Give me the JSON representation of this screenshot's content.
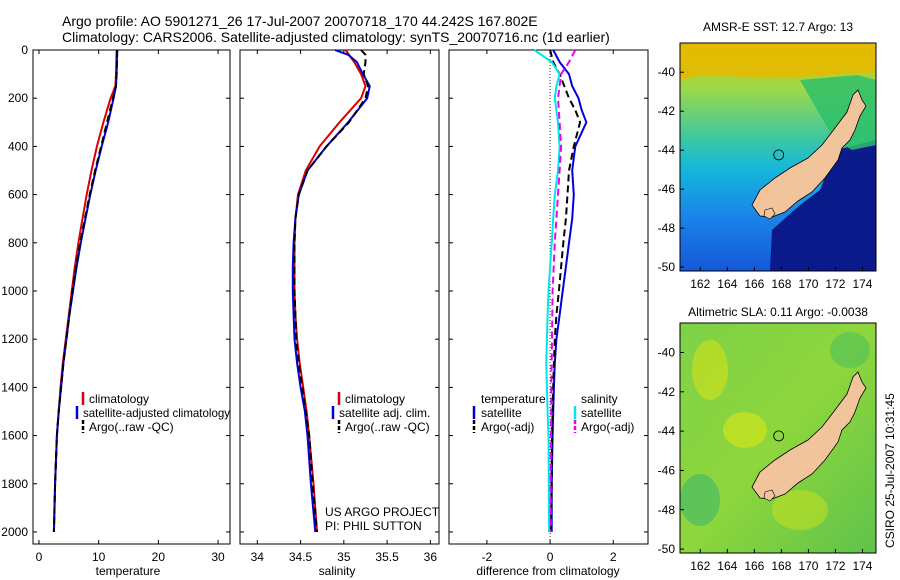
{
  "header": {
    "title_line1": "Argo profile: AO 5901271_26 17-Jul-2007 20070718_170 44.242S 167.802E",
    "title_line2": "Climatology: CARS2006. Satellite-adjusted climatology: synTS_20070716.nc (1d earlier)"
  },
  "colors": {
    "climatology": "#dd0000",
    "satellite": "#0000dd",
    "argo": "#000000",
    "salinity_satellite": "#00e5ee",
    "salinity_argo": "#ee00ee",
    "land": "#f2c49b",
    "sst_ocean": "#0b1a8a"
  },
  "footer": {
    "project": "US ARGO PROJECT",
    "pi": "PI: PHIL SUTTON",
    "stamp": "CSIRO 25-Jul-2007 10:31:45"
  },
  "chart_data": [
    {
      "type": "line",
      "xlabel": "temperature",
      "xlim": [
        -1,
        32
      ],
      "ylim": [
        2050,
        0
      ],
      "xticks": [
        "0",
        "10",
        "20",
        "30"
      ],
      "yticks": [
        "0",
        "200",
        "400",
        "600",
        "800",
        "1000",
        "1200",
        "1400",
        "1600",
        "1800",
        "2000"
      ],
      "legend": [
        "climatology",
        "satellite-adjusted climatology",
        "Argo(..raw -QC)"
      ],
      "legend_position": "lower-center",
      "series": [
        {
          "name": "climatology",
          "color": "#dd0000",
          "depth": [
            0,
            100,
            150,
            200,
            300,
            400,
            500,
            600,
            700,
            800,
            900,
            1000,
            1100,
            1200,
            1300,
            1400,
            1500,
            1600,
            1800,
            2000
          ],
          "values": [
            13.0,
            12.9,
            12.8,
            12.0,
            10.8,
            9.7,
            8.8,
            8.0,
            7.3,
            6.6,
            6.0,
            5.5,
            5.0,
            4.5,
            4.0,
            3.6,
            3.3,
            3.0,
            2.7,
            2.5
          ]
        },
        {
          "name": "satellite-adjusted climatology",
          "color": "#0000dd",
          "depth": [
            0,
            100,
            150,
            200,
            300,
            400,
            500,
            600,
            700,
            800,
            900,
            1000,
            1100,
            1200,
            1300,
            1400,
            1500,
            1600,
            1800,
            2000
          ],
          "values": [
            13.1,
            13.0,
            12.9,
            12.5,
            11.6,
            10.5,
            9.5,
            8.6,
            7.8,
            7.0,
            6.3,
            5.7,
            5.1,
            4.6,
            4.1,
            3.7,
            3.3,
            3.0,
            2.7,
            2.5
          ]
        },
        {
          "name": "Argo(..raw -QC)",
          "color": "#000000",
          "depth": [
            0,
            100,
            150,
            200,
            300,
            400,
            500,
            600,
            700,
            800,
            900,
            1000,
            1100,
            1200,
            1300,
            1400,
            1500,
            1600,
            1800,
            2000
          ],
          "values": [
            13.1,
            13.0,
            12.9,
            12.4,
            11.4,
            10.4,
            9.4,
            8.5,
            7.7,
            6.9,
            6.2,
            5.6,
            5.1,
            4.6,
            4.1,
            3.7,
            3.3,
            3.0,
            2.7,
            2.5
          ]
        }
      ]
    },
    {
      "type": "line",
      "xlabel": "salinity",
      "xlim": [
        33.8,
        36.1
      ],
      "ylim": [
        2050,
        0
      ],
      "xticks": [
        "34",
        "34.5",
        "35",
        "35.5",
        "36"
      ],
      "legend": [
        "climatology",
        "satellite adj. clim.",
        "Argo(..raw -QC)"
      ],
      "legend_position": "lower-center",
      "series": [
        {
          "name": "climatology",
          "color": "#dd0000",
          "depth": [
            0,
            50,
            100,
            150,
            200,
            300,
            400,
            500,
            600,
            700,
            800,
            900,
            1000,
            1100,
            1200,
            1300,
            1400,
            1500,
            1600,
            1800,
            2000
          ],
          "values": [
            35.02,
            35.12,
            35.2,
            35.25,
            35.2,
            34.95,
            34.72,
            34.56,
            34.47,
            34.44,
            34.43,
            34.43,
            34.43,
            34.44,
            34.46,
            34.49,
            34.53,
            34.57,
            34.6,
            34.65,
            34.69
          ]
        },
        {
          "name": "satellite adj. clim.",
          "color": "#0000dd",
          "depth": [
            0,
            20,
            50,
            100,
            150,
            200,
            300,
            400,
            500,
            600,
            700,
            800,
            900,
            1000,
            1100,
            1200,
            1300,
            1400,
            1500,
            1600,
            1800,
            2000
          ],
          "values": [
            34.9,
            35.05,
            35.15,
            35.22,
            35.3,
            35.27,
            35.05,
            34.8,
            34.58,
            34.48,
            34.44,
            34.42,
            34.41,
            34.41,
            34.42,
            34.43,
            34.46,
            34.5,
            34.55,
            34.58,
            34.62,
            34.67
          ]
        },
        {
          "name": "Argo(..raw -QC)",
          "color": "#000000",
          "depth": [
            0,
            20,
            50,
            100,
            150,
            200,
            300,
            400,
            500,
            600,
            700,
            800,
            900,
            1000,
            1100,
            1200,
            1300,
            1400,
            1500,
            1600,
            1800,
            2000
          ],
          "values": [
            35.2,
            35.25,
            35.25,
            35.23,
            35.28,
            35.25,
            35.06,
            34.8,
            34.58,
            34.48,
            34.44,
            34.43,
            34.43,
            34.43,
            34.44,
            34.45,
            34.48,
            34.52,
            34.56,
            34.6,
            34.64,
            34.69
          ]
        }
      ],
      "annotations": [
        "US ARGO PROJECT",
        "PI: PHIL SUTTON"
      ]
    },
    {
      "type": "line",
      "xlabel": "difference from climatology",
      "xlim": [
        -3.2,
        3.1
      ],
      "ylim": [
        2050,
        0
      ],
      "xticks": [
        "-2",
        "0",
        "2"
      ],
      "legend": [
        "temperature",
        "satellite",
        "Argo(-adj)",
        "salinity",
        "satellite",
        "Argo(-adj)"
      ],
      "legend_position": "lower-center",
      "zero_line": "dotted",
      "series": [
        {
          "name": "temperature satellite",
          "color": "#0000dd",
          "depth": [
            0,
            50,
            100,
            150,
            200,
            250,
            300,
            400,
            500,
            600,
            700,
            800,
            900,
            1000,
            1100,
            1200,
            1300,
            1400,
            1500,
            1600,
            1800,
            2000
          ],
          "values": [
            0.1,
            0.3,
            0.6,
            0.7,
            0.9,
            1.0,
            1.15,
            0.8,
            0.7,
            0.75,
            0.7,
            0.6,
            0.5,
            0.4,
            0.3,
            0.2,
            0.15,
            0.12,
            0.1,
            0.08,
            0.05,
            0.05
          ]
        },
        {
          "name": "temperature Argo(-adj)",
          "color": "#000000",
          "depth": [
            0,
            50,
            100,
            150,
            200,
            250,
            300,
            400,
            500,
            600,
            700,
            800,
            900,
            1000,
            1100,
            1200,
            1300,
            1400,
            1500,
            1600,
            1800,
            2000
          ],
          "values": [
            0.0,
            0.1,
            0.3,
            0.45,
            0.6,
            0.8,
            0.95,
            0.75,
            0.6,
            0.55,
            0.5,
            0.42,
            0.35,
            0.28,
            0.2,
            0.15,
            0.12,
            0.1,
            0.08,
            0.06,
            0.05,
            0.03
          ]
        },
        {
          "name": "salinity satellite",
          "color": "#00e5ee",
          "depth": [
            0,
            50,
            100,
            150,
            200,
            300,
            400,
            500,
            600,
            700,
            800,
            900,
            1000,
            1100,
            1200,
            1300,
            1400,
            1500,
            1600,
            1800,
            2000
          ],
          "values": [
            -0.5,
            0.05,
            0.3,
            0.2,
            0.15,
            0.25,
            0.3,
            0.25,
            0.15,
            0.1,
            0.05,
            0.0,
            -0.05,
            -0.08,
            -0.1,
            -0.12,
            -0.1,
            -0.08,
            -0.05,
            -0.04,
            -0.03
          ]
        },
        {
          "name": "salinity Argo(-adj)",
          "color": "#ee00ee",
          "depth": [
            0,
            50,
            100,
            150,
            200,
            300,
            400,
            500,
            600,
            800,
            1000,
            1200,
            1400,
            1600,
            1800,
            2000
          ],
          "values": [
            0.8,
            0.6,
            0.35,
            0.3,
            0.25,
            0.3,
            0.35,
            0.3,
            0.25,
            0.15,
            0.08,
            0.06,
            0.04,
            0.03,
            0.02,
            0.02
          ]
        }
      ]
    },
    {
      "type": "heatmap",
      "title": "AMSR-E SST: 12.7 Argo: 13",
      "xticks": [
        "162",
        "164",
        "166",
        "168",
        "170",
        "172",
        "174"
      ],
      "yticks": [
        "-40",
        "-42",
        "-44",
        "-46",
        "-48",
        "-50"
      ],
      "xlim": [
        160.5,
        175.0
      ],
      "ylim": [
        -50.2,
        -38.5
      ],
      "profile_location": [
        167.802,
        -44.242
      ]
    },
    {
      "type": "heatmap",
      "title": "Altimetric SLA: 0.11 Argo: -0.0038",
      "xticks": [
        "162",
        "164",
        "166",
        "168",
        "170",
        "172",
        "174"
      ],
      "yticks": [
        "-40",
        "-42",
        "-44",
        "-46",
        "-48",
        "-50"
      ],
      "xlim": [
        160.5,
        175.0
      ],
      "ylim": [
        -50.2,
        -38.5
      ],
      "profile_location": [
        167.802,
        -44.242
      ]
    }
  ]
}
